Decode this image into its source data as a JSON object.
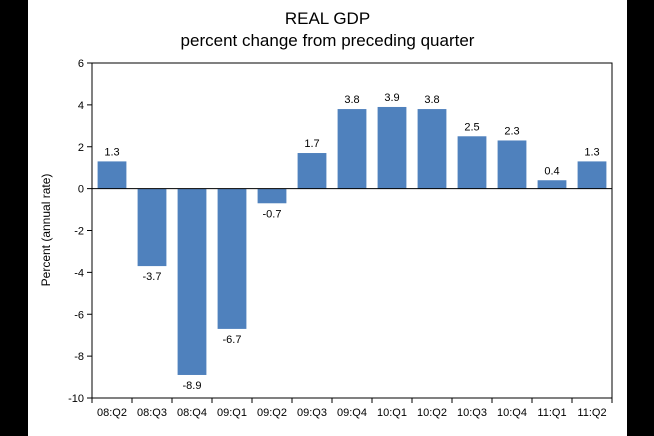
{
  "chart_data": {
    "type": "bar",
    "title": "REAL GDP",
    "subtitle": "percent change from preceding quarter",
    "xlabel": "",
    "ylabel": "Percent (annual rate)",
    "ylim": [
      -10,
      6
    ],
    "yticks": [
      -10,
      -8,
      -6,
      -4,
      -2,
      0,
      2,
      4,
      6
    ],
    "grid": false,
    "categories": [
      "08:Q2",
      "08:Q3",
      "08:Q4",
      "09:Q1",
      "09:Q2",
      "09:Q3",
      "09:Q4",
      "10:Q1",
      "10:Q2",
      "10:Q3",
      "10:Q4",
      "11:Q1",
      "11:Q2"
    ],
    "series": [
      {
        "name": "Real GDP",
        "values": [
          1.3,
          -3.7,
          -8.9,
          -6.7,
          -0.7,
          1.7,
          3.8,
          3.9,
          3.8,
          2.5,
          2.3,
          0.4,
          1.3
        ],
        "labels": [
          "1.3",
          "-3.7",
          "-8.9",
          "-6.7",
          "-0.7",
          "1.7",
          "3.8",
          "3.9",
          "3.8",
          "2.5",
          "2.3",
          "0.4",
          "1.3"
        ]
      }
    ],
    "colors": {
      "bar": "#4f81bd",
      "axis": "#000000",
      "background": "#ffffff",
      "frame": "#000000"
    }
  }
}
